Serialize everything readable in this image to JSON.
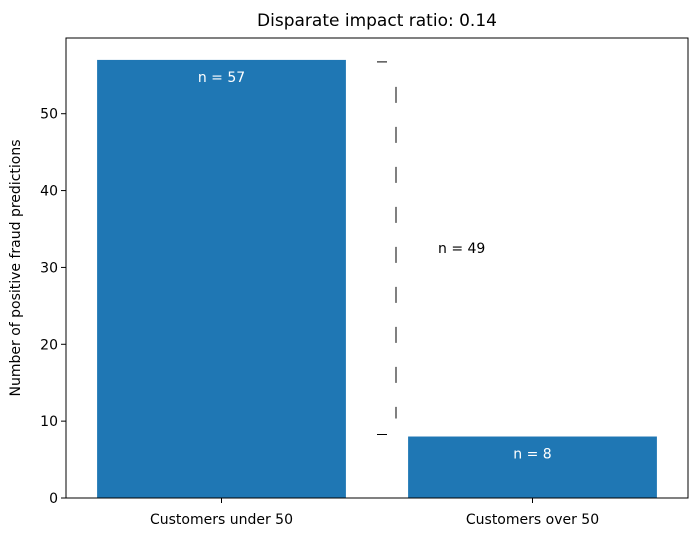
{
  "chart_data": {
    "type": "bar",
    "title": "Disparate impact ratio: 0.14",
    "xlabel": "",
    "ylabel": "Number of positive fraud predictions",
    "categories": [
      "Customers under 50",
      "Customers over 50"
    ],
    "values": [
      57,
      8
    ],
    "bar_labels": [
      "n = 57",
      "n = 8"
    ],
    "bar_color": "#1f77b4",
    "bar_label_color": "#ffffff",
    "ylim": [
      0,
      59.85
    ],
    "yticks": [
      0,
      10,
      20,
      30,
      40,
      50
    ],
    "grid": false,
    "difference_annotation": {
      "from": 8,
      "to": 57,
      "label": "n = 49"
    }
  }
}
